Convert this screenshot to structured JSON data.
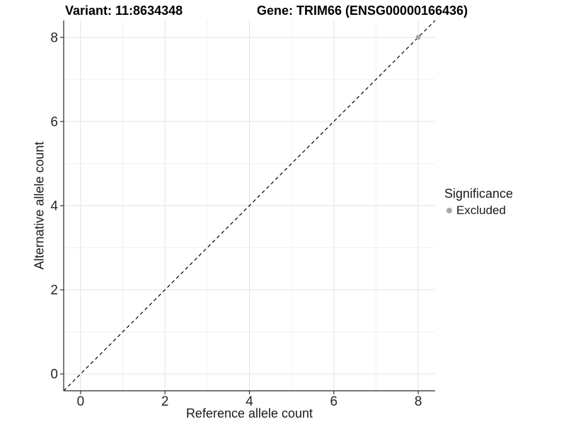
{
  "header": {
    "variant_title": "Variant: 11:8634348",
    "gene_title": "Gene: TRIM66 (ENSG00000166436)"
  },
  "chart_data": {
    "type": "scatter",
    "title_left": "Variant: 11:8634348",
    "title_right": "Gene: TRIM66 (ENSG00000166436)",
    "xlabel": "Reference allele count",
    "ylabel": "Alternative allele count",
    "xlim": [
      -0.4,
      8.4
    ],
    "ylim": [
      -0.4,
      8.4
    ],
    "x_ticks": [
      0,
      2,
      4,
      6,
      8
    ],
    "y_ticks": [
      0,
      2,
      4,
      6,
      8
    ],
    "x_minor_ticks": [
      1,
      3,
      5,
      7
    ],
    "y_minor_ticks": [
      1,
      3,
      5,
      7
    ],
    "grid": {
      "enabled": true,
      "major_color": "#e3e3e3",
      "minor_color": "#f1f1f1"
    },
    "identity_line": {
      "style": "dashed",
      "from": [
        -0.4,
        -0.4
      ],
      "to": [
        8.4,
        8.4
      ],
      "color": "#000000"
    },
    "series": [
      {
        "name": "Excluded",
        "color": "#a8a8a8",
        "points": [
          [
            8,
            8
          ]
        ]
      }
    ],
    "legend": {
      "title": "Significance",
      "position": "right",
      "entries": [
        {
          "label": "Excluded",
          "color": "#a8a8a8"
        }
      ]
    },
    "axis_color": "#262626",
    "tick_label_color": "#262626"
  }
}
